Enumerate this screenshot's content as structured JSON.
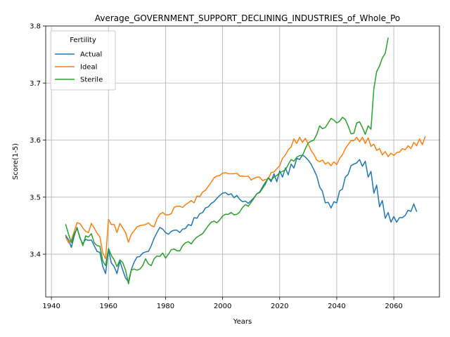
{
  "chart_data": {
    "type": "line",
    "title": "Average_GOVERNMENT_SUPPORT_DECLINING_INDUSTRIES_of_Whole_Po",
    "xlabel": "Years",
    "ylabel": "Score(1-5)",
    "xlim": [
      1938,
      2076
    ],
    "ylim": [
      3.325,
      3.8
    ],
    "xticks": [
      1940,
      1960,
      1980,
      2000,
      2020,
      2040,
      2060
    ],
    "yticks": [
      3.4,
      3.5,
      3.6,
      3.7,
      3.8
    ],
    "grid": true,
    "legend": {
      "title": "Fertility",
      "position": "top-left"
    },
    "series": [
      {
        "name": "Actual",
        "color": "#1f77b4",
        "start_year": 1945,
        "values": [
          3.433,
          3.425,
          3.412,
          3.432,
          3.447,
          3.428,
          3.418,
          3.426,
          3.424,
          3.425,
          3.415,
          3.405,
          3.403,
          3.378,
          3.366,
          3.408,
          3.385,
          3.378,
          3.366,
          3.388,
          3.372,
          3.358,
          3.352,
          3.373,
          3.386,
          3.395,
          3.396,
          3.402,
          3.404,
          3.405,
          3.415,
          3.428,
          3.438,
          3.447,
          3.444,
          3.438,
          3.435,
          3.44,
          3.442,
          3.442,
          3.438,
          3.444,
          3.445,
          3.452,
          3.45,
          3.464,
          3.463,
          3.471,
          3.473,
          3.481,
          3.483,
          3.489,
          3.492,
          3.498,
          3.503,
          3.507,
          3.508,
          3.504,
          3.506,
          3.499,
          3.503,
          3.496,
          3.492,
          3.493,
          3.489,
          3.494,
          3.499,
          3.506,
          3.509,
          3.518,
          3.526,
          3.534,
          3.527,
          3.541,
          3.527,
          3.546,
          3.535,
          3.551,
          3.539,
          3.558,
          3.551,
          3.568,
          3.566,
          3.574,
          3.57,
          3.565,
          3.558,
          3.548,
          3.537,
          3.518,
          3.51,
          3.49,
          3.491,
          3.481,
          3.492,
          3.49,
          3.511,
          3.514,
          3.535,
          3.54,
          3.555,
          3.558,
          3.56,
          3.566,
          3.554,
          3.563,
          3.535,
          3.545,
          3.507,
          3.521,
          3.483,
          3.494,
          3.463,
          3.473,
          3.456,
          3.466,
          3.456,
          3.464,
          3.464,
          3.468,
          3.477,
          3.475,
          3.488,
          3.475
        ]
      },
      {
        "name": "Ideal",
        "color": "#ff7f0e",
        "start_year": 1945,
        "values": [
          3.43,
          3.42,
          3.425,
          3.44,
          3.455,
          3.454,
          3.446,
          3.44,
          3.438,
          3.454,
          3.446,
          3.437,
          3.43,
          3.402,
          3.392,
          3.461,
          3.452,
          3.452,
          3.438,
          3.454,
          3.446,
          3.438,
          3.421,
          3.435,
          3.441,
          3.448,
          3.45,
          3.451,
          3.452,
          3.455,
          3.45,
          3.448,
          3.462,
          3.47,
          3.473,
          3.469,
          3.469,
          3.471,
          3.482,
          3.484,
          3.484,
          3.482,
          3.487,
          3.49,
          3.494,
          3.49,
          3.502,
          3.501,
          3.509,
          3.512,
          3.519,
          3.526,
          3.534,
          3.537,
          3.538,
          3.542,
          3.543,
          3.541,
          3.541,
          3.541,
          3.542,
          3.537,
          3.537,
          3.536,
          3.537,
          3.53,
          3.533,
          3.535,
          3.535,
          3.529,
          3.531,
          3.532,
          3.543,
          3.544,
          3.55,
          3.555,
          3.568,
          3.574,
          3.583,
          3.588,
          3.602,
          3.594,
          3.605,
          3.596,
          3.603,
          3.593,
          3.582,
          3.575,
          3.565,
          3.562,
          3.565,
          3.558,
          3.561,
          3.555,
          3.562,
          3.557,
          3.568,
          3.574,
          3.585,
          3.592,
          3.599,
          3.599,
          3.605,
          3.597,
          3.605,
          3.594,
          3.604,
          3.589,
          3.593,
          3.582,
          3.585,
          3.574,
          3.58,
          3.571,
          3.577,
          3.573,
          3.578,
          3.579,
          3.585,
          3.583,
          3.59,
          3.585,
          3.596,
          3.59,
          3.602,
          3.592,
          3.606
        ]
      },
      {
        "name": "Sterile",
        "color": "#2ca02c",
        "start_year": 1945,
        "values": [
          3.452,
          3.435,
          3.42,
          3.436,
          3.445,
          3.43,
          3.415,
          3.432,
          3.43,
          3.436,
          3.42,
          3.415,
          3.414,
          3.388,
          3.38,
          3.41,
          3.398,
          3.39,
          3.378,
          3.39,
          3.385,
          3.372,
          3.348,
          3.372,
          3.374,
          3.372,
          3.374,
          3.38,
          3.392,
          3.383,
          3.38,
          3.392,
          3.397,
          3.396,
          3.402,
          3.393,
          3.4,
          3.408,
          3.409,
          3.406,
          3.406,
          3.415,
          3.42,
          3.422,
          3.418,
          3.425,
          3.43,
          3.433,
          3.436,
          3.443,
          3.45,
          3.456,
          3.458,
          3.455,
          3.46,
          3.467,
          3.47,
          3.47,
          3.473,
          3.469,
          3.47,
          3.474,
          3.482,
          3.487,
          3.484,
          3.491,
          3.498,
          3.506,
          3.508,
          3.515,
          3.523,
          3.534,
          3.53,
          3.535,
          3.538,
          3.543,
          3.545,
          3.548,
          3.557,
          3.566,
          3.563,
          3.57,
          3.573,
          3.573,
          3.585,
          3.595,
          3.598,
          3.6,
          3.61,
          3.625,
          3.62,
          3.622,
          3.63,
          3.638,
          3.635,
          3.63,
          3.633,
          3.64,
          3.636,
          3.625,
          3.611,
          3.612,
          3.63,
          3.632,
          3.622,
          3.61,
          3.625,
          3.619,
          3.69,
          3.72,
          3.73,
          3.744,
          3.752,
          3.779
        ]
      }
    ]
  }
}
